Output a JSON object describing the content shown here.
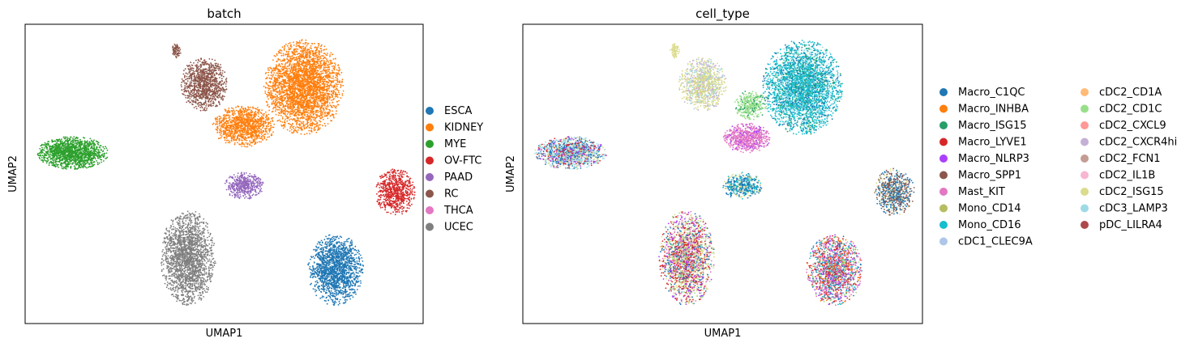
{
  "chart_data": [
    {
      "type": "scatter",
      "title": "batch",
      "xlabel": "UMAP1",
      "ylabel": "UMAP2",
      "xlim": [
        0,
        100
      ],
      "ylim": [
        0,
        100
      ],
      "grid": false,
      "xticks": [],
      "yticks": [],
      "legend": {
        "placement": "right",
        "columns": 1,
        "entries": [
          {
            "name": "ESCA",
            "color": "#1f77b4"
          },
          {
            "name": "KIDNEY",
            "color": "#ff7f0e"
          },
          {
            "name": "MYE",
            "color": "#2ca02c"
          },
          {
            "name": "OV-FTC",
            "color": "#d62728"
          },
          {
            "name": "PAAD",
            "color": "#9467bd"
          },
          {
            "name": "RC",
            "color": "#8c564b"
          },
          {
            "name": "THCA",
            "color": "#e377c2"
          },
          {
            "name": "UCEC",
            "color": "#7f7f7f"
          }
        ]
      },
      "clusters": [
        {
          "series": "KIDNEY",
          "x": 70,
          "y": 79,
          "rx": 10,
          "ry": 16,
          "n": 3200
        },
        {
          "series": "KIDNEY",
          "x": 55,
          "y": 66,
          "rx": 8,
          "ry": 7,
          "n": 1100
        },
        {
          "series": "RC",
          "x": 45,
          "y": 80,
          "rx": 6,
          "ry": 9,
          "n": 1000
        },
        {
          "series": "RC",
          "x": 38,
          "y": 91,
          "rx": 1.2,
          "ry": 2.5,
          "n": 80
        },
        {
          "series": "MYE",
          "x": 12,
          "y": 57,
          "rx": 9,
          "ry": 5.5,
          "n": 1400
        },
        {
          "series": "PAAD",
          "x": 55,
          "y": 46,
          "rx": 5,
          "ry": 4.5,
          "n": 450
        },
        {
          "series": "OV-FTC",
          "x": 93,
          "y": 44,
          "rx": 5,
          "ry": 8,
          "n": 700
        },
        {
          "series": "UCEC",
          "x": 41,
          "y": 22,
          "rx": 7,
          "ry": 16,
          "n": 2000
        },
        {
          "series": "ESCA",
          "x": 78,
          "y": 18,
          "rx": 7,
          "ry": 12,
          "n": 1600
        }
      ]
    },
    {
      "type": "scatter",
      "title": "cell_type",
      "xlabel": "UMAP1",
      "ylabel": "UMAP2",
      "xlim": [
        0,
        100
      ],
      "ylim": [
        0,
        100
      ],
      "grid": false,
      "xticks": [],
      "yticks": [],
      "legend": {
        "placement": "right",
        "columns": 2,
        "entries": [
          {
            "name": "Macro_C1QC",
            "color": "#1f77b4"
          },
          {
            "name": "Macro_INHBA",
            "color": "#ff7f0e"
          },
          {
            "name": "Macro_ISG15",
            "color": "#279e68"
          },
          {
            "name": "Macro_LYVE1",
            "color": "#d62728"
          },
          {
            "name": "Macro_NLRP3",
            "color": "#aa40fc"
          },
          {
            "name": "Macro_SPP1",
            "color": "#8c564b"
          },
          {
            "name": "Mast_KIT",
            "color": "#e377c2"
          },
          {
            "name": "Mono_CD14",
            "color": "#b5bd61"
          },
          {
            "name": "Mono_CD16",
            "color": "#17becf"
          },
          {
            "name": "cDC1_CLEC9A",
            "color": "#aec7e8"
          },
          {
            "name": "cDC2_CD1A",
            "color": "#ffbb78"
          },
          {
            "name": "cDC2_CD1C",
            "color": "#98df8a"
          },
          {
            "name": "cDC2_CXCL9",
            "color": "#ff9896"
          },
          {
            "name": "cDC2_CXCR4hi",
            "color": "#c5b0d5"
          },
          {
            "name": "cDC2_FCN1",
            "color": "#c49c94"
          },
          {
            "name": "cDC2_IL1B",
            "color": "#f7b6d2"
          },
          {
            "name": "cDC2_ISG15",
            "color": "#dbdb8d"
          },
          {
            "name": "cDC3_LAMP3",
            "color": "#9edae5"
          },
          {
            "name": "pDC_LILRA4",
            "color": "#ad494a"
          }
        ]
      },
      "clusters": [
        {
          "x": 70,
          "y": 79,
          "rx": 10,
          "ry": 16,
          "n": 3200,
          "mix": [
            [
              "Mono_CD16",
              5
            ],
            [
              "Macro_ISG15",
              1
            ],
            [
              "cDC3_LAMP3",
              1
            ],
            [
              "Macro_C1QC",
              1
            ]
          ]
        },
        {
          "x": 57,
          "y": 73,
          "rx": 4,
          "ry": 5,
          "n": 350,
          "mix": [
            [
              "cDC2_CD1C",
              4
            ],
            [
              "Macro_ISG15",
              1
            ]
          ]
        },
        {
          "x": 56,
          "y": 62,
          "rx": 6,
          "ry": 5,
          "n": 700,
          "mix": [
            [
              "Mast_KIT",
              5
            ],
            [
              "Macro_NLRP3",
              1
            ]
          ]
        },
        {
          "x": 45,
          "y": 80,
          "rx": 6,
          "ry": 9,
          "n": 1000,
          "mix": [
            [
              "cDC2_ISG15",
              3
            ],
            [
              "cDC2_CXCR4hi",
              1
            ],
            [
              "cDC3_LAMP3",
              1
            ]
          ]
        },
        {
          "x": 38,
          "y": 91,
          "rx": 1.2,
          "ry": 2.5,
          "n": 80,
          "mix": [
            [
              "cDC2_ISG15",
              1
            ]
          ]
        },
        {
          "x": 12,
          "y": 57,
          "rx": 9,
          "ry": 5.5,
          "n": 1400,
          "mix": [
            [
              "cDC3_LAMP3",
              3
            ],
            [
              "Macro_C1QC",
              2
            ],
            [
              "cDC2_ISG15",
              1
            ],
            [
              "Macro_LYVE1",
              1
            ],
            [
              "Macro_NLRP3",
              1
            ]
          ]
        },
        {
          "x": 55,
          "y": 46,
          "rx": 5,
          "ry": 4.5,
          "n": 450,
          "mix": [
            [
              "Macro_C1QC",
              2
            ],
            [
              "cDC2_ISG15",
              1
            ],
            [
              "Mono_CD16",
              1
            ]
          ]
        },
        {
          "x": 93,
          "y": 44,
          "rx": 5,
          "ry": 8,
          "n": 700,
          "mix": [
            [
              "Macro_C1QC",
              3
            ],
            [
              "Macro_SPP1",
              2
            ],
            [
              "cDC2_ISG15",
              1
            ]
          ]
        },
        {
          "x": 41,
          "y": 22,
          "rx": 7,
          "ry": 16,
          "n": 2000,
          "mix": [
            [
              "Macro_LYVE1",
              2
            ],
            [
              "cDC2_ISG15",
              2
            ],
            [
              "Macro_NLRP3",
              1
            ],
            [
              "Mast_KIT",
              1
            ],
            [
              "Macro_C1QC",
              1
            ],
            [
              "cDC2_CD1C",
              1
            ]
          ]
        },
        {
          "x": 78,
          "y": 18,
          "rx": 7,
          "ry": 12,
          "n": 1600,
          "mix": [
            [
              "Macro_LYVE1",
              2
            ],
            [
              "Mast_KIT",
              2
            ],
            [
              "cDC2_CD1C",
              1
            ],
            [
              "Mono_CD16",
              1
            ],
            [
              "Macro_INHBA",
              1
            ],
            [
              "Macro_NLRP3",
              1
            ],
            [
              "Macro_C1QC",
              1
            ]
          ]
        }
      ]
    }
  ]
}
